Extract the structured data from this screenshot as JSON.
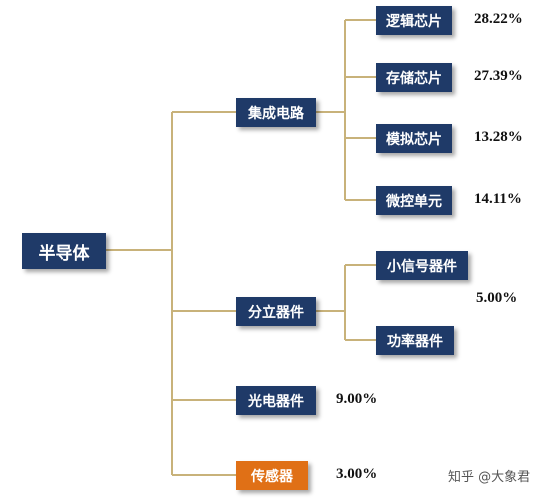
{
  "colors": {
    "box": "#1f3a68",
    "highlight": "#e07016",
    "connector": "#c8b27a"
  },
  "root": {
    "label": "半导体"
  },
  "categories": [
    {
      "label": "集成电路",
      "percent": ""
    },
    {
      "label": "分立器件",
      "percent": "5.00%"
    },
    {
      "label": "光电器件",
      "percent": "9.00%"
    },
    {
      "label": "传感器",
      "percent": "3.00%"
    }
  ],
  "ic_children": [
    {
      "label": "逻辑芯片",
      "percent": "28.22%"
    },
    {
      "label": "存储芯片",
      "percent": "27.39%"
    },
    {
      "label": "模拟芯片",
      "percent": "13.28%"
    },
    {
      "label": "微控单元",
      "percent": "14.11%"
    }
  ],
  "discrete_children": [
    {
      "label": "小信号器件"
    },
    {
      "label": "功率器件"
    }
  ],
  "watermark": "知乎 @大象君"
}
